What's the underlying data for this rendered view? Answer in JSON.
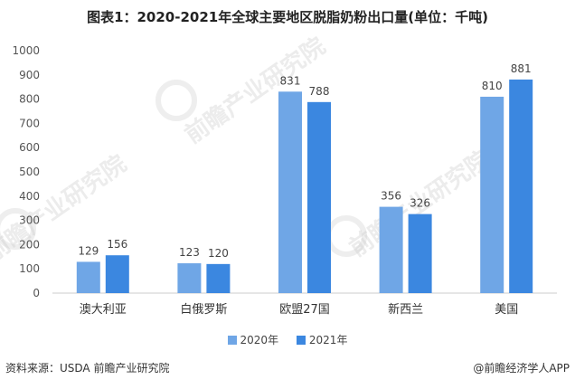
{
  "title": "图表1：2020-2021年全球主要地区脱脂奶粉出口量(单位：千吨)",
  "footer": {
    "source": "资料来源：USDA 前瞻产业研究院",
    "credit": "@前瞻经济学人APP"
  },
  "watermark": {
    "text": "前瞻产业研究院"
  },
  "colors": {
    "series_2020": "#6fa6e6",
    "series_2021": "#3b87e0",
    "gridline": "#e6e6e6",
    "axis_text": "#555555"
  },
  "chart_data": {
    "type": "bar",
    "categories": [
      "澳大利亚",
      "白俄罗斯",
      "欧盟27国",
      "新西兰",
      "美国"
    ],
    "series": [
      {
        "name": "2020年",
        "values": [
          129,
          123,
          831,
          356,
          810
        ]
      },
      {
        "name": "2021年",
        "values": [
          156,
          120,
          788,
          326,
          881
        ]
      }
    ],
    "yticks": [
      0,
      100,
      200,
      300,
      400,
      500,
      600,
      700,
      800,
      900,
      1000
    ],
    "ylim": [
      0,
      1000
    ],
    "grid": false,
    "legend": "bottom",
    "data_labels": true
  }
}
